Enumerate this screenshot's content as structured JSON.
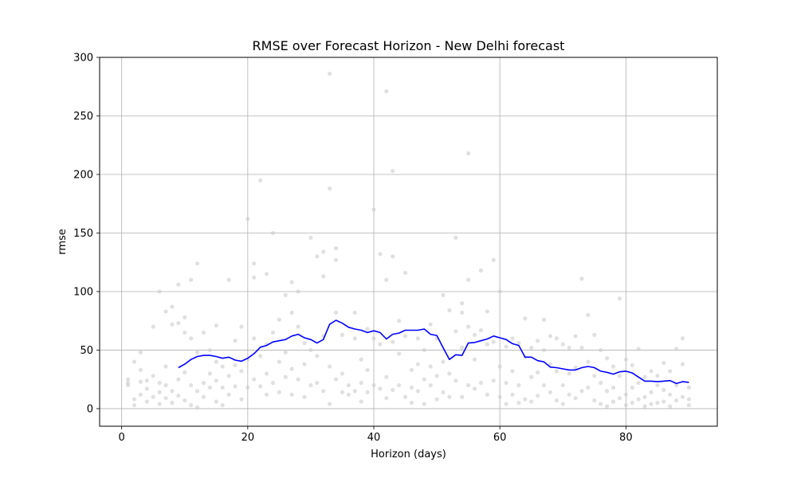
{
  "chart_data": {
    "type": "line",
    "title": "RMSE over Forecast Horizon - New Delhi forecast",
    "xlabel": "Horizon (days)",
    "ylabel": "rmse",
    "xlim": [
      -3.5,
      94.5
    ],
    "ylim": [
      -15,
      300
    ],
    "xticks": [
      0,
      20,
      40,
      60,
      80
    ],
    "yticks": [
      0,
      50,
      100,
      150,
      200,
      250,
      300
    ],
    "grid": true,
    "colors": {
      "line": "#0000ff",
      "scatter": "#cccccc",
      "grid": "#b0b0b0"
    },
    "series": [
      {
        "kind": "line",
        "x": [
          9,
          10,
          11,
          12,
          13,
          14,
          15,
          16,
          17,
          18,
          19,
          20,
          21,
          22,
          23,
          24,
          25,
          26,
          27,
          28,
          29,
          30,
          31,
          32,
          33,
          34,
          35,
          36,
          37,
          38,
          39,
          40,
          41,
          42,
          43,
          44,
          45,
          46,
          47,
          48,
          49,
          50,
          51,
          52,
          53,
          54,
          55,
          56,
          57,
          58,
          59,
          60,
          61,
          62,
          63,
          64,
          65,
          66,
          67,
          68,
          69,
          70,
          71,
          72,
          73,
          74,
          75,
          76,
          77,
          78,
          79,
          80,
          81,
          82,
          83,
          84,
          85,
          86,
          87,
          88,
          89,
          90
        ],
        "y": [
          35,
          38,
          42,
          44.5,
          45.5,
          45.5,
          44.5,
          43,
          44,
          41.5,
          40.5,
          43,
          47,
          52.5,
          54,
          57,
          58,
          59,
          62,
          63.5,
          60.5,
          59,
          56,
          59,
          72,
          75.5,
          73,
          69.5,
          68,
          67,
          65,
          66.5,
          65,
          59.5,
          63.5,
          64.5,
          67,
          67,
          67,
          68,
          63.5,
          62.5,
          52,
          42,
          46,
          45.5,
          56,
          56.5,
          58,
          59.5,
          62,
          60.5,
          59,
          55.5,
          54,
          44,
          44,
          41,
          40,
          35.5,
          35,
          34,
          33,
          33,
          35,
          36,
          35,
          32,
          31,
          29.5,
          31.5,
          32,
          30.5,
          27,
          23.5,
          23.5,
          23,
          23.5,
          24,
          21.5,
          23,
          22.5
        ]
      },
      {
        "kind": "scatter",
        "points": [
          [
            1,
            25
          ],
          [
            1,
            22
          ],
          [
            1,
            20
          ],
          [
            2,
            40
          ],
          [
            2,
            8
          ],
          [
            2,
            3
          ],
          [
            3,
            48
          ],
          [
            3,
            33
          ],
          [
            3,
            23
          ],
          [
            3,
            12
          ],
          [
            4,
            24
          ],
          [
            4,
            17
          ],
          [
            4,
            6
          ],
          [
            5,
            70
          ],
          [
            5,
            28
          ],
          [
            5,
            10
          ],
          [
            6,
            100
          ],
          [
            6,
            22
          ],
          [
            6,
            14
          ],
          [
            6,
            4
          ],
          [
            7,
            83
          ],
          [
            7,
            36
          ],
          [
            7,
            20
          ],
          [
            7,
            9
          ],
          [
            8,
            87
          ],
          [
            8,
            72
          ],
          [
            8,
            15
          ],
          [
            8,
            5
          ],
          [
            9,
            106
          ],
          [
            9,
            73
          ],
          [
            9,
            25
          ],
          [
            9,
            11
          ],
          [
            10,
            78
          ],
          [
            10,
            65
          ],
          [
            10,
            31
          ],
          [
            10,
            7
          ],
          [
            11,
            110
          ],
          [
            11,
            60
          ],
          [
            11,
            20
          ],
          [
            11,
            3
          ],
          [
            12,
            124
          ],
          [
            12,
            48
          ],
          [
            12,
            15
          ],
          [
            12,
            1
          ],
          [
            13,
            65
          ],
          [
            13,
            22
          ],
          [
            13,
            10
          ],
          [
            14,
            50
          ],
          [
            14,
            30
          ],
          [
            14,
            18
          ],
          [
            15,
            71
          ],
          [
            15,
            40
          ],
          [
            15,
            24
          ],
          [
            15,
            6
          ],
          [
            16,
            36
          ],
          [
            16,
            18
          ],
          [
            16,
            3
          ],
          [
            17,
            110
          ],
          [
            17,
            28
          ],
          [
            17,
            12
          ],
          [
            18,
            58
          ],
          [
            18,
            37
          ],
          [
            18,
            19
          ],
          [
            19,
            70
          ],
          [
            19,
            32
          ],
          [
            19,
            8
          ],
          [
            20,
            162
          ],
          [
            20,
            42
          ],
          [
            20,
            18
          ],
          [
            21,
            124
          ],
          [
            21,
            112
          ],
          [
            21,
            60
          ],
          [
            21,
            25
          ],
          [
            22,
            195
          ],
          [
            22,
            45
          ],
          [
            22,
            19
          ],
          [
            23,
            115
          ],
          [
            23,
            55
          ],
          [
            23,
            30
          ],
          [
            23,
            12
          ],
          [
            24,
            150
          ],
          [
            24,
            65
          ],
          [
            24,
            22
          ],
          [
            25,
            76
          ],
          [
            25,
            40
          ],
          [
            25,
            14
          ],
          [
            26,
            97
          ],
          [
            26,
            48
          ],
          [
            26,
            27
          ],
          [
            27,
            108
          ],
          [
            27,
            82
          ],
          [
            27,
            34
          ],
          [
            27,
            12
          ],
          [
            28,
            100
          ],
          [
            28,
            70
          ],
          [
            28,
            25
          ],
          [
            29,
            56
          ],
          [
            29,
            38
          ],
          [
            29,
            10
          ],
          [
            30,
            146
          ],
          [
            30,
            50
          ],
          [
            30,
            20
          ],
          [
            31,
            130
          ],
          [
            31,
            45
          ],
          [
            31,
            22
          ],
          [
            32,
            134
          ],
          [
            32,
            113
          ],
          [
            32,
            62
          ],
          [
            32,
            15
          ],
          [
            33,
            286
          ],
          [
            33,
            188
          ],
          [
            33,
            36
          ],
          [
            33,
            4
          ],
          [
            34,
            137
          ],
          [
            34,
            127
          ],
          [
            34,
            82
          ],
          [
            34,
            25
          ],
          [
            35,
            63
          ],
          [
            35,
            30
          ],
          [
            35,
            14
          ],
          [
            36,
            20
          ],
          [
            36,
            12
          ],
          [
            37,
            82
          ],
          [
            37,
            60
          ],
          [
            37,
            15
          ],
          [
            38,
            42
          ],
          [
            38,
            22
          ],
          [
            38,
            6
          ],
          [
            39,
            68
          ],
          [
            39,
            33
          ],
          [
            39,
            14
          ],
          [
            40,
            170
          ],
          [
            40,
            60
          ],
          [
            40,
            20
          ],
          [
            41,
            132
          ],
          [
            41,
            55
          ],
          [
            41,
            17
          ],
          [
            42,
            271
          ],
          [
            42,
            110
          ],
          [
            42,
            27
          ],
          [
            42,
            9
          ],
          [
            43,
            203
          ],
          [
            43,
            130
          ],
          [
            43,
            57
          ],
          [
            43,
            16
          ],
          [
            44,
            75
          ],
          [
            44,
            47
          ],
          [
            44,
            20
          ],
          [
            45,
            116
          ],
          [
            45,
            62
          ],
          [
            45,
            10
          ],
          [
            46,
            33
          ],
          [
            46,
            18
          ],
          [
            46,
            5
          ],
          [
            47,
            60
          ],
          [
            47,
            38
          ],
          [
            47,
            15
          ],
          [
            48,
            50
          ],
          [
            48,
            25
          ],
          [
            48,
            4
          ],
          [
            49,
            72
          ],
          [
            49,
            36
          ],
          [
            49,
            20
          ],
          [
            50,
            60
          ],
          [
            50,
            28
          ],
          [
            50,
            8
          ],
          [
            51,
            97
          ],
          [
            51,
            40
          ],
          [
            51,
            14
          ],
          [
            52,
            84
          ],
          [
            52,
            30
          ],
          [
            52,
            10
          ],
          [
            53,
            146
          ],
          [
            53,
            66
          ],
          [
            53,
            24
          ],
          [
            54,
            90
          ],
          [
            54,
            82
          ],
          [
            54,
            52
          ],
          [
            54,
            10
          ],
          [
            55,
            218
          ],
          [
            55,
            110
          ],
          [
            55,
            70
          ],
          [
            55,
            20
          ],
          [
            56,
            63
          ],
          [
            56,
            42
          ],
          [
            56,
            17
          ],
          [
            57,
            118
          ],
          [
            57,
            67
          ],
          [
            57,
            22
          ],
          [
            58,
            83
          ],
          [
            58,
            55
          ],
          [
            58,
            12
          ],
          [
            59,
            127
          ],
          [
            59,
            57
          ],
          [
            59,
            24
          ],
          [
            60,
            100
          ],
          [
            60,
            36
          ],
          [
            60,
            10
          ],
          [
            61,
            53
          ],
          [
            61,
            22
          ],
          [
            61,
            4
          ],
          [
            62,
            60
          ],
          [
            62,
            32
          ],
          [
            62,
            12
          ],
          [
            63,
            56
          ],
          [
            63,
            20
          ],
          [
            63,
            5
          ],
          [
            64,
            77
          ],
          [
            64,
            44
          ],
          [
            64,
            8
          ],
          [
            65,
            52
          ],
          [
            65,
            27
          ],
          [
            65,
            6
          ],
          [
            66,
            58
          ],
          [
            66,
            31
          ],
          [
            66,
            11
          ],
          [
            67,
            76
          ],
          [
            67,
            50
          ],
          [
            67,
            20
          ],
          [
            68,
            62
          ],
          [
            68,
            38
          ],
          [
            68,
            14
          ],
          [
            69,
            60
          ],
          [
            69,
            32
          ],
          [
            69,
            7
          ],
          [
            70,
            55
          ],
          [
            70,
            20
          ],
          [
            70,
            4
          ],
          [
            71,
            52
          ],
          [
            71,
            30
          ],
          [
            71,
            12
          ],
          [
            72,
            62
          ],
          [
            72,
            35
          ],
          [
            72,
            9
          ],
          [
            73,
            111
          ],
          [
            73,
            52
          ],
          [
            73,
            15
          ],
          [
            74,
            80
          ],
          [
            74,
            40
          ],
          [
            74,
            18
          ],
          [
            75,
            63
          ],
          [
            75,
            28
          ],
          [
            75,
            7
          ],
          [
            76,
            50
          ],
          [
            76,
            22
          ],
          [
            76,
            4
          ],
          [
            77,
            43
          ],
          [
            77,
            15
          ],
          [
            77,
            2
          ],
          [
            78,
            36
          ],
          [
            78,
            18
          ],
          [
            78,
            6
          ],
          [
            79,
            94
          ],
          [
            79,
            28
          ],
          [
            79,
            9
          ],
          [
            80,
            42
          ],
          [
            80,
            12
          ],
          [
            80,
            3
          ],
          [
            81,
            37
          ],
          [
            81,
            18
          ],
          [
            81,
            5
          ],
          [
            82,
            51
          ],
          [
            82,
            22
          ],
          [
            82,
            8
          ],
          [
            83,
            27
          ],
          [
            83,
            10
          ],
          [
            83,
            2
          ],
          [
            84,
            32
          ],
          [
            84,
            14
          ],
          [
            84,
            4
          ],
          [
            85,
            28
          ],
          [
            85,
            20
          ],
          [
            85,
            5
          ],
          [
            86,
            39
          ],
          [
            86,
            16
          ],
          [
            86,
            6
          ],
          [
            87,
            32
          ],
          [
            87,
            12
          ],
          [
            87,
            2
          ],
          [
            88,
            51
          ],
          [
            88,
            20
          ],
          [
            88,
            7
          ],
          [
            89,
            60
          ],
          [
            89,
            38
          ],
          [
            89,
            10
          ],
          [
            90,
            18
          ],
          [
            90,
            8
          ],
          [
            90,
            3
          ]
        ]
      }
    ]
  }
}
